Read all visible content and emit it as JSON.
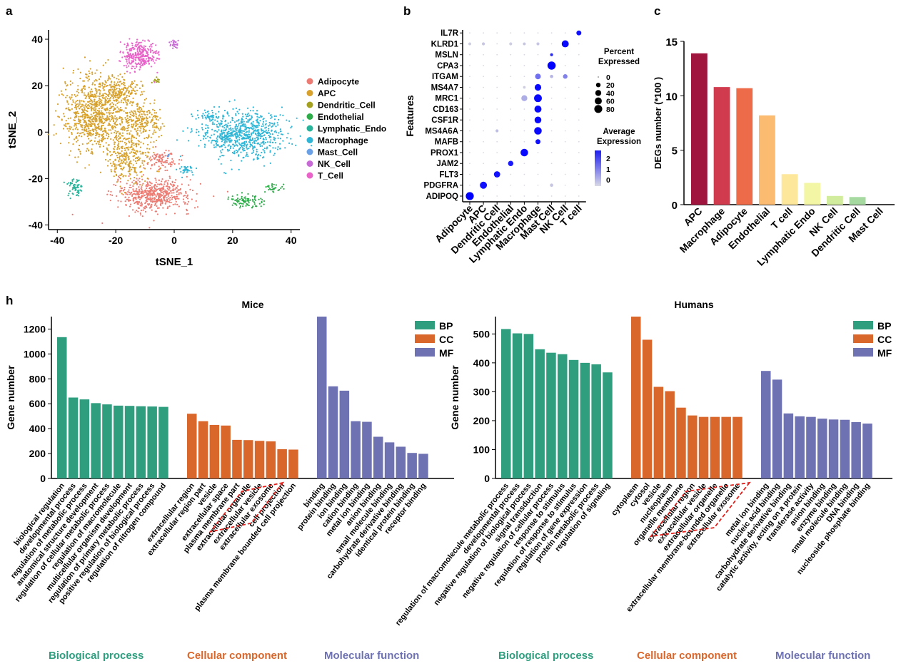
{
  "panel_labels": {
    "a": "a",
    "b": "b",
    "c": "c",
    "h": "h"
  },
  "colors": {
    "BP": "#2e9e7f",
    "CC": "#d9672b",
    "MF": "#6e72b3",
    "highlight": "#e0201b"
  },
  "categories_text": {
    "mice_bp": "Biological process",
    "mice_cc": "Cellular component",
    "mice_mf": "Molecular function",
    "hum_bp": "Biological process",
    "hum_cc": "Cellular component",
    "hum_mf": "Molecular function"
  },
  "chart_data": [
    {
      "id": "a",
      "type": "scatter",
      "xlabel": "tSNE_1",
      "ylabel": "tSNE_2",
      "xlim": [
        -43,
        43
      ],
      "ylim": [
        -42,
        44
      ],
      "xticks": [
        -40,
        -20,
        0,
        20,
        40
      ],
      "yticks": [
        -40,
        -20,
        0,
        20,
        40
      ],
      "legend_position": "right",
      "series": [
        {
          "name": "Adipocyte",
          "color": "#ec7c73",
          "clusters": [
            {
              "cx": -7,
              "cy": -27,
              "rx": 13,
              "ry": 7,
              "n": 550
            },
            {
              "cx": -4,
              "cy": -12,
              "rx": 5,
              "ry": 4,
              "n": 90
            }
          ]
        },
        {
          "name": "APC",
          "color": "#d7a12b",
          "clusters": [
            {
              "cx": -27,
              "cy": 8,
              "rx": 11,
              "ry": 16,
              "n": 850
            },
            {
              "cx": -15,
              "cy": -10,
              "rx": 7,
              "ry": 11,
              "n": 300
            },
            {
              "cx": -11,
              "cy": 5,
              "rx": 7,
              "ry": 7,
              "n": 220
            },
            {
              "cx": -19,
              "cy": 18,
              "rx": 7,
              "ry": 5,
              "n": 160
            }
          ]
        },
        {
          "name": "Dendritic_Cell",
          "color": "#a3a11f",
          "clusters": [
            {
              "cx": -6,
              "cy": 22,
              "rx": 1.2,
              "ry": 1.2,
              "n": 15
            }
          ]
        },
        {
          "name": "Endothelial",
          "color": "#2eac4a",
          "clusters": [
            {
              "cx": 24,
              "cy": -30,
              "rx": 6,
              "ry": 3,
              "n": 90
            },
            {
              "cx": 34,
              "cy": -24,
              "rx": 3,
              "ry": 2,
              "n": 30
            }
          ]
        },
        {
          "name": "Lymphatic_Endo",
          "color": "#28b49a",
          "clusters": [
            {
              "cx": -34,
              "cy": -24,
              "rx": 2.5,
              "ry": 4,
              "n": 60
            }
          ]
        },
        {
          "name": "Macrophage",
          "color": "#2fb6d6",
          "clusters": [
            {
              "cx": 23,
              "cy": -1,
              "rx": 14,
              "ry": 10,
              "n": 750
            },
            {
              "cx": 4,
              "cy": -16,
              "rx": 3,
              "ry": 2,
              "n": 35
            },
            {
              "cx": 12,
              "cy": 7,
              "rx": 3,
              "ry": 2,
              "n": 30
            }
          ]
        },
        {
          "name": "Mast_Cell",
          "color": "#6aa0e6",
          "clusters": [
            {
              "cx": -2,
              "cy": -10,
              "rx": 0.8,
              "ry": 0.8,
              "n": 6
            }
          ]
        },
        {
          "name": "NK_Cell",
          "color": "#c86ad6",
          "clusters": [
            {
              "cx": 0,
              "cy": 38,
              "rx": 2,
              "ry": 2,
              "n": 25
            }
          ]
        },
        {
          "name": "T_Cell",
          "color": "#e963c9",
          "clusters": [
            {
              "cx": -12,
              "cy": 33,
              "rx": 6,
              "ry": 6,
              "n": 300
            }
          ]
        }
      ]
    },
    {
      "id": "b",
      "type": "scatter",
      "xlabel": "",
      "ylabel": "Features",
      "x_categories": [
        "Adipocyte",
        "APC",
        "Dendritic Cell",
        "Endothelial",
        "Lymphatic Endo",
        "Macrophage",
        "Mast Cell",
        "NK Cell",
        "T cell"
      ],
      "y_categories": [
        "ADIPOQ",
        "PDGFRA",
        "FLT3",
        "JAM2",
        "PROX1",
        "MAFB",
        "MS4A6A",
        "CSF1R",
        "CD163",
        "MRC1",
        "MS4A7",
        "ITGAM",
        "CPA3",
        "MSLN",
        "KLRD1",
        "IL7R"
      ],
      "legend_size_title": "Percent Expressed",
      "legend_size_values": [
        0,
        20,
        40,
        60,
        80
      ],
      "legend_color_title": "Average Expression",
      "legend_color_values": [
        2,
        1,
        0
      ],
      "points": [
        {
          "x": "Adipocyte",
          "y": "ADIPOQ",
          "pct": 80,
          "avg": 2.5
        },
        {
          "x": "APC",
          "y": "PDGFRA",
          "pct": 60,
          "avg": 2.3
        },
        {
          "x": "Dendritic Cell",
          "y": "FLT3",
          "pct": 45,
          "avg": 2.3
        },
        {
          "x": "Endothelial",
          "y": "JAM2",
          "pct": 30,
          "avg": 2.2
        },
        {
          "x": "Lymphatic Endo",
          "y": "PROX1",
          "pct": 70,
          "avg": 2.4
        },
        {
          "x": "Macrophage",
          "y": "MAFB",
          "pct": 25,
          "avg": 2.3
        },
        {
          "x": "Macrophage",
          "y": "MS4A6A",
          "pct": 70,
          "avg": 2.4
        },
        {
          "x": "Macrophage",
          "y": "CSF1R",
          "pct": 55,
          "avg": 2.4
        },
        {
          "x": "Macrophage",
          "y": "CD163",
          "pct": 60,
          "avg": 2.4
        },
        {
          "x": "Macrophage",
          "y": "MRC1",
          "pct": 75,
          "avg": 2.4
        },
        {
          "x": "Lymphatic Endo",
          "y": "MRC1",
          "pct": 40,
          "avg": 0.5
        },
        {
          "x": "Macrophage",
          "y": "MS4A7",
          "pct": 50,
          "avg": 2.4
        },
        {
          "x": "Macrophage",
          "y": "ITGAM",
          "pct": 35,
          "avg": 1.2
        },
        {
          "x": "NK Cell",
          "y": "ITGAM",
          "pct": 20,
          "avg": 1.0
        },
        {
          "x": "Mast Cell",
          "y": "ITGAM",
          "pct": 8,
          "avg": 0.4
        },
        {
          "x": "Mast Cell",
          "y": "CPA3",
          "pct": 85,
          "avg": 2.5
        },
        {
          "x": "Mast Cell",
          "y": "MSLN",
          "pct": 6,
          "avg": 2.0
        },
        {
          "x": "NK Cell",
          "y": "KLRD1",
          "pct": 60,
          "avg": 2.4
        },
        {
          "x": "T cell",
          "y": "IL7R",
          "pct": 25,
          "avg": 2.3
        },
        {
          "x": "Adipocyte",
          "y": "KLRD1",
          "pct": 5,
          "avg": 0.1
        },
        {
          "x": "APC",
          "y": "KLRD1",
          "pct": 6,
          "avg": 0.2
        },
        {
          "x": "Endothelial",
          "y": "KLRD1",
          "pct": 6,
          "avg": 0.1
        },
        {
          "x": "Lymphatic Endo",
          "y": "KLRD1",
          "pct": 5,
          "avg": 0.2
        },
        {
          "x": "Macrophage",
          "y": "KLRD1",
          "pct": 6,
          "avg": 0.2
        },
        {
          "x": "Mast Cell",
          "y": "PDGFRA",
          "pct": 8,
          "avg": 0.2
        },
        {
          "x": "Dendritic Cell",
          "y": "MS4A6A",
          "pct": 6,
          "avg": 0.3
        },
        {
          "x": "Lymphatic Endo",
          "y": "MS4A7",
          "pct": 4,
          "avg": 0.1
        }
      ]
    },
    {
      "id": "c",
      "type": "bar",
      "xlabel": "",
      "ylabel": "DEGs number (*100 )",
      "ylim": [
        0,
        15
      ],
      "yticks": [
        0,
        5,
        10,
        15
      ],
      "categories": [
        "APC",
        "Macrophage",
        "Adipocyte",
        "Endothelial",
        "T cell",
        "Lymphatic Endo",
        "NK Cell",
        "Dendritic Cell",
        "Mast Cell"
      ],
      "values": [
        13.9,
        10.8,
        10.7,
        8.2,
        2.8,
        2.0,
        0.8,
        0.7,
        0.0
      ],
      "bar_colors": [
        "#a0153e",
        "#d13b4e",
        "#ee6b4a",
        "#fbbb71",
        "#fde79b",
        "#f3f6a4",
        "#d2ec9e",
        "#a5d99f",
        "#80c69e"
      ]
    },
    {
      "id": "h-mice",
      "type": "bar",
      "title": "Mice",
      "xlabel": "",
      "ylabel": "Gene number",
      "ylim": [
        0,
        1300
      ],
      "yticks": [
        0,
        200,
        400,
        600,
        800,
        1000,
        1200
      ],
      "legend_position": "top-right",
      "series": [
        {
          "name": "BP",
          "categories": [
            "biological regulation",
            "developmental process",
            "regulation of metabolic process",
            "anatomical structure development",
            "regulation of cellular metabolic process",
            "regulation of macromolecule",
            "multicellular organism development",
            "regulation of primary metabolic process",
            "positive regulation of biological process",
            "regulation of nitrogen compound"
          ],
          "values": [
            1135,
            650,
            635,
            605,
            595,
            585,
            583,
            580,
            578,
            575
          ]
        },
        {
          "name": "CC",
          "categories": [
            "extracellular region",
            "extracellular region part",
            "vesicle",
            "extracellular space",
            "plasma membrane part",
            "extracellular organelle",
            "extracellular vesicle",
            "extracellular exosome",
            "cell projection",
            "plasma membrane bounded cell projection"
          ],
          "values": [
            520,
            460,
            430,
            425,
            310,
            308,
            302,
            298,
            235,
            232
          ],
          "highlighted": [
            "extracellular organelle",
            "extracellular vesicle",
            "extracellular exosome"
          ]
        },
        {
          "name": "MF",
          "categories": [
            "binding",
            "protein binding",
            "ion binding",
            "cation binding",
            "metal ion binding",
            "anion binding",
            "small molecule binding",
            "carbohydrate derivative binding",
            "identical protein binding",
            "receptor binding"
          ],
          "values": [
            1300,
            740,
            705,
            460,
            455,
            335,
            290,
            255,
            205,
            198
          ]
        }
      ]
    },
    {
      "id": "h-humans",
      "type": "bar",
      "title": "Humans",
      "xlabel": "",
      "ylabel": "Gene number",
      "ylim": [
        0,
        560
      ],
      "yticks": [
        0,
        100,
        200,
        300,
        400,
        500
      ],
      "legend_position": "top-right",
      "series": [
        {
          "name": "BP",
          "categories": [
            "regulation of macromolecule metabolic process",
            "developmental process",
            "negative regulation of biological process",
            "signal transduction",
            "negative regulation of cellular process",
            "response to stimulus",
            "regulation of response to stimulus",
            "regulation of gene expression",
            "protein metabolic process",
            "regulation of signaling"
          ],
          "values": [
            517,
            502,
            500,
            447,
            435,
            430,
            410,
            400,
            395,
            367
          ]
        },
        {
          "name": "CC",
          "categories": [
            "cytoplasm",
            "cytosol",
            "vesicle",
            "nucleoplasm",
            "organelle membrane",
            "extracellular region",
            "extracellular vesicle",
            "extracellular organelle",
            "extracellular membrane-bounded organelle",
            "extracellular exosome"
          ],
          "values": [
            560,
            480,
            317,
            302,
            245,
            218,
            213,
            213,
            213,
            213
          ],
          "highlighted": [
            "extracellular region",
            "extracellular vesicle",
            "extracellular organelle",
            "extracellular membrane-bounded organelle",
            "extracellular exosome"
          ]
        },
        {
          "name": "MF",
          "categories": [
            "metal ion binding",
            "nucleic acid binding",
            "carbohydrate derivative binding",
            "catalytic activity, acting on a protein",
            "transferase activity",
            "anion binding",
            "enzyme binding",
            "small molecule binding",
            "DNA binding",
            "nucleoside phosphate binding"
          ],
          "values": [
            372,
            342,
            225,
            215,
            213,
            207,
            204,
            203,
            195,
            190
          ]
        }
      ]
    }
  ]
}
